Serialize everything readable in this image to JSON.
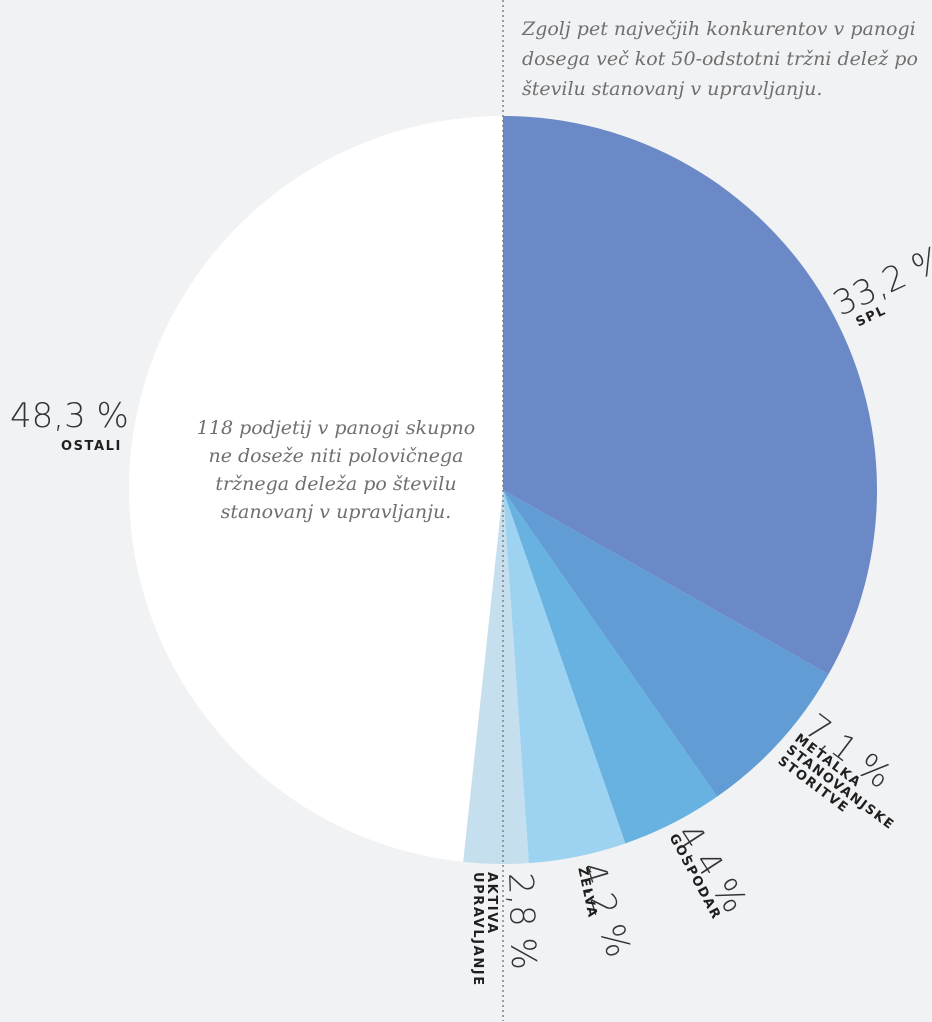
{
  "note_top": "Zgolj pet največjih konkurentov v panogi dosega več kot 50-odstotni tržni delež po številu stanovanj v upravljanju.",
  "note_center": "118 podjetij v panogi skupno ne doseže niti polovičnega tržnega deleža po številu stanovanj v upravljanju.",
  "chart_data": {
    "type": "pie",
    "start": "top",
    "direction": "clockwise",
    "slices": [
      {
        "name": "SPL",
        "value": 33.2,
        "label": "33,2 %",
        "color": "#6b89c6"
      },
      {
        "name": "METALKA STANOVANJSKE STORITVE",
        "value": 7.1,
        "label": "7,1 %",
        "color": "#629cd4"
      },
      {
        "name": "GOSPODAR",
        "value": 4.4,
        "label": "4,4 %",
        "color": "#68b2e2"
      },
      {
        "name": "ŽELVA",
        "value": 4.2,
        "label": "4,2 %",
        "color": "#9dd3f1"
      },
      {
        "name": "AKTIVA UPRAVLJANJE",
        "value": 2.8,
        "label": "2,8 %",
        "color": "#c6dfee"
      },
      {
        "name": "OSTALI",
        "value": 48.3,
        "label": "48,3 %",
        "color": "#ffffff"
      }
    ]
  }
}
